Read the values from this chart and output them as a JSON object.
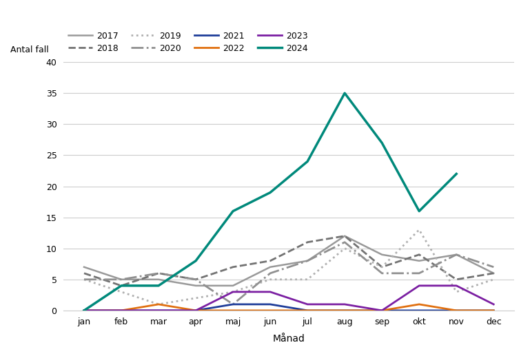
{
  "months": [
    "jan",
    "feb",
    "mar",
    "apr",
    "maj",
    "jun",
    "jul",
    "aug",
    "sep",
    "okt",
    "nov",
    "dec"
  ],
  "series": {
    "2017": [
      7,
      5,
      5,
      4,
      4,
      7,
      8,
      12,
      9,
      8,
      9,
      6
    ],
    "2018": [
      6,
      4,
      6,
      5,
      7,
      8,
      11,
      12,
      7,
      9,
      5,
      6
    ],
    "2019": [
      5,
      3,
      1,
      2,
      3,
      5,
      5,
      10,
      7,
      13,
      3,
      5
    ],
    "2020": [
      5,
      5,
      6,
      5,
      1,
      6,
      8,
      11,
      6,
      6,
      9,
      7
    ],
    "2021": [
      0,
      0,
      0,
      0,
      1,
      1,
      0,
      0,
      0,
      0,
      0,
      0
    ],
    "2022": [
      0,
      0,
      1,
      0,
      0,
      0,
      0,
      0,
      0,
      1,
      0,
      0
    ],
    "2023": [
      0,
      0,
      0,
      0,
      3,
      3,
      1,
      1,
      0,
      4,
      4,
      1
    ],
    "2024": [
      0,
      4,
      4,
      8,
      16,
      19,
      24,
      35,
      27,
      16,
      22,
      null
    ]
  },
  "colors": {
    "2017": "#999999",
    "2018": "#737373",
    "2019": "#b0b0b0",
    "2020": "#909090",
    "2021": "#1f3d99",
    "2022": "#e07010",
    "2023": "#7b1fa2",
    "2024": "#00897b"
  },
  "linestyles": {
    "2017": "solid",
    "2018": "dashed",
    "2019": "dotted",
    "2020": "dashdot",
    "2021": "solid",
    "2022": "solid",
    "2023": "solid",
    "2024": "solid"
  },
  "linewidths": {
    "2017": 1.8,
    "2018": 2.0,
    "2019": 2.0,
    "2020": 2.0,
    "2021": 2.0,
    "2022": 2.0,
    "2023": 2.0,
    "2024": 2.5
  },
  "ylabel": "Antal fall",
  "xlabel": "Månad",
  "ylim": [
    0,
    40
  ],
  "yticks": [
    0,
    5,
    10,
    15,
    20,
    25,
    30,
    35,
    40
  ],
  "background_color": "#ffffff",
  "grid_color": "#cccccc",
  "legend_order": [
    "2017",
    "2018",
    "2019",
    "2020",
    "2021",
    "2022",
    "2023",
    "2024"
  ]
}
